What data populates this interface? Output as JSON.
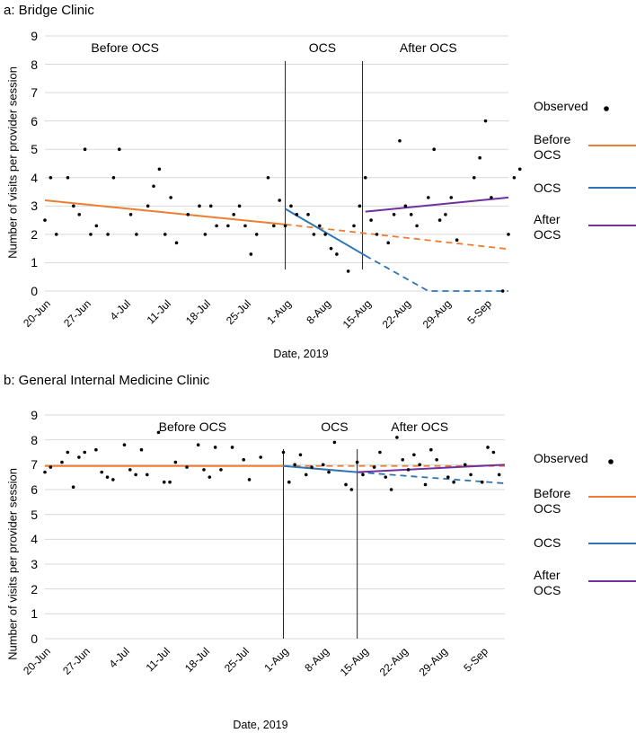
{
  "chart_data": [
    {
      "type": "scatter",
      "panel_title": "a: Bridge Clinic",
      "ylabel": "Number of visits per provider session",
      "xlabel": "Date, 2019",
      "ylim": [
        0,
        9
      ],
      "yticks": [
        "0",
        "1",
        "2",
        "3",
        "4",
        "5",
        "6",
        "7",
        "8",
        "9"
      ],
      "xticks": [
        "20-Jun",
        "27-Jun",
        "4-Jul",
        "11-Jul",
        "18-Jul",
        "25-Jul",
        "1-Aug",
        "8-Aug",
        "15-Aug",
        "22-Aug",
        "29-Aug",
        "5-Sep"
      ],
      "xlim_days": [
        0,
        81
      ],
      "phase_labels": [
        "Before OCS",
        "OCS",
        "After OCS"
      ],
      "phase_label_days": [
        14,
        48.5,
        67
      ],
      "phase_boundaries_days": [
        42,
        55.5
      ],
      "observed": [
        [
          0,
          2.5
        ],
        [
          1,
          4
        ],
        [
          2,
          2
        ],
        [
          4,
          4
        ],
        [
          5,
          3
        ],
        [
          6,
          2.7
        ],
        [
          7,
          5
        ],
        [
          8,
          2
        ],
        [
          9,
          2.3
        ],
        [
          11,
          2
        ],
        [
          12,
          4
        ],
        [
          13,
          5
        ],
        [
          15,
          2.7
        ],
        [
          16,
          2
        ],
        [
          18,
          3
        ],
        [
          19,
          3.7
        ],
        [
          20,
          4.3
        ],
        [
          21,
          2
        ],
        [
          22,
          3.3
        ],
        [
          23,
          1.7
        ],
        [
          25,
          2.7
        ],
        [
          27,
          3
        ],
        [
          28,
          2
        ],
        [
          29,
          3
        ],
        [
          30,
          2.3
        ],
        [
          32,
          2.3
        ],
        [
          33,
          2.7
        ],
        [
          34,
          3
        ],
        [
          35,
          2.3
        ],
        [
          36,
          1.3
        ],
        [
          37,
          2
        ],
        [
          39,
          4
        ],
        [
          40,
          2.3
        ],
        [
          41,
          3.2
        ],
        [
          42,
          2.3
        ],
        [
          43,
          3
        ],
        [
          44,
          2.7
        ],
        [
          46,
          2.7
        ],
        [
          47,
          2
        ],
        [
          48,
          2.3
        ],
        [
          49,
          2
        ],
        [
          50,
          1.5
        ],
        [
          51,
          1.3
        ],
        [
          53,
          0.7
        ],
        [
          54,
          2.3
        ],
        [
          55,
          3
        ],
        [
          56,
          4
        ],
        [
          57,
          2.5
        ],
        [
          58,
          2
        ],
        [
          60,
          1.7
        ],
        [
          61,
          2.7
        ],
        [
          62,
          5.3
        ],
        [
          63,
          3
        ],
        [
          64,
          2.7
        ],
        [
          65,
          2.3
        ],
        [
          67,
          3.3
        ],
        [
          68,
          5
        ],
        [
          69,
          2.5
        ],
        [
          70,
          2.7
        ],
        [
          71,
          3.3
        ],
        [
          72,
          1.8
        ],
        [
          75,
          4
        ],
        [
          76,
          4.7
        ],
        [
          77,
          6
        ],
        [
          78,
          3.3
        ],
        [
          80,
          0
        ],
        [
          81,
          2
        ],
        [
          82,
          4
        ],
        [
          83,
          4.3
        ]
      ],
      "series": [
        {
          "name": "Before OCS",
          "color": "#ED7D31",
          "solid": [
            [
              0,
              3.2
            ],
            [
              42,
              2.35
            ]
          ],
          "dashed": [
            [
              42,
              2.35
            ],
            [
              81,
              1.48
            ]
          ]
        },
        {
          "name": "OCS",
          "color": "#2E75B6",
          "solid": [
            [
              42,
              2.9
            ],
            [
              56,
              1.25
            ]
          ],
          "dashed": [
            [
              56,
              1.25
            ],
            [
              67,
              0
            ],
            [
              81,
              0
            ]
          ]
        },
        {
          "name": "After OCS",
          "color": "#7030A0",
          "solid": [
            [
              56,
              2.8
            ],
            [
              81,
              3.3
            ]
          ],
          "dashed": []
        }
      ],
      "legend": {
        "observed": "Observed",
        "items": [
          "Before OCS",
          "OCS",
          "After OCS"
        ]
      }
    },
    {
      "type": "scatter",
      "panel_title": "b: General Internal Medicine Clinic",
      "ylabel": "Number of visits per provider session",
      "xlabel": "Date, 2019",
      "ylim": [
        0,
        9
      ],
      "yticks": [
        "0",
        "1",
        "2",
        "3",
        "4",
        "5",
        "6",
        "7",
        "8",
        "9"
      ],
      "xticks": [
        "20-Jun",
        "27-Jun",
        "4-Jul",
        "11-Jul",
        "18-Jul",
        "25-Jul",
        "1-Aug",
        "8-Aug",
        "15-Aug",
        "22-Aug",
        "29-Aug",
        "5-Sep"
      ],
      "xlim_days": [
        0,
        81
      ],
      "phase_labels": [
        "Before OCS",
        "OCS",
        "After OCS"
      ],
      "phase_label_days": [
        26,
        51,
        66
      ],
      "phase_boundaries_days": [
        42,
        55
      ],
      "observed": [
        [
          0,
          6.7
        ],
        [
          1,
          6.9
        ],
        [
          3,
          7.1
        ],
        [
          4,
          7.5
        ],
        [
          5,
          6.1
        ],
        [
          6,
          7.3
        ],
        [
          7,
          7.5
        ],
        [
          9,
          7.6
        ],
        [
          10,
          6.7
        ],
        [
          11,
          6.5
        ],
        [
          12,
          6.4
        ],
        [
          14,
          7.8
        ],
        [
          15,
          6.8
        ],
        [
          16,
          6.6
        ],
        [
          17,
          7.6
        ],
        [
          18,
          6.6
        ],
        [
          20,
          8.3
        ],
        [
          21,
          6.3
        ],
        [
          22,
          6.3
        ],
        [
          23,
          7.1
        ],
        [
          25,
          6.9
        ],
        [
          27,
          7.8
        ],
        [
          28,
          6.8
        ],
        [
          29,
          6.5
        ],
        [
          30,
          7.7
        ],
        [
          31,
          6.8
        ],
        [
          33,
          7.7
        ],
        [
          35,
          7.2
        ],
        [
          36,
          6.4
        ],
        [
          38,
          7.3
        ],
        [
          42,
          7.5
        ],
        [
          43,
          6.3
        ],
        [
          44,
          7.0
        ],
        [
          45,
          7.4
        ],
        [
          46,
          6.6
        ],
        [
          47,
          6.9
        ],
        [
          49,
          7.0
        ],
        [
          50,
          6.7
        ],
        [
          51,
          7.9
        ],
        [
          53,
          6.2
        ],
        [
          54,
          6.0
        ],
        [
          55,
          7.1
        ],
        [
          56,
          6.6
        ],
        [
          58,
          6.9
        ],
        [
          59,
          7.5
        ],
        [
          60,
          6.5
        ],
        [
          61,
          6.0
        ],
        [
          62,
          8.1
        ],
        [
          63,
          7.2
        ],
        [
          64,
          6.8
        ],
        [
          65,
          7.4
        ],
        [
          66,
          7.0
        ],
        [
          67,
          6.2
        ],
        [
          68,
          7.6
        ],
        [
          69,
          7.2
        ],
        [
          71,
          6.5
        ],
        [
          72,
          6.3
        ],
        [
          74,
          7.0
        ],
        [
          75,
          6.6
        ],
        [
          77,
          6.3
        ],
        [
          78,
          7.7
        ],
        [
          79,
          7.5
        ],
        [
          80,
          6.6
        ]
      ],
      "series": [
        {
          "name": "Before OCS",
          "color": "#ED7D31",
          "solid": [
            [
              0,
              6.95
            ],
            [
              42,
              6.95
            ]
          ],
          "dashed": [
            [
              42,
              6.95
            ],
            [
              81,
              6.95
            ]
          ]
        },
        {
          "name": "OCS",
          "color": "#2E75B6",
          "solid": [
            [
              42,
              6.95
            ],
            [
              55,
              6.7
            ]
          ],
          "dashed": [
            [
              55,
              6.7
            ],
            [
              81,
              6.25
            ]
          ]
        },
        {
          "name": "After OCS",
          "color": "#7030A0",
          "solid": [
            [
              55,
              6.7
            ],
            [
              81,
              7.0
            ]
          ],
          "dashed": []
        }
      ],
      "legend": {
        "observed": "Observed",
        "items": [
          "Before OCS",
          "OCS",
          "After OCS"
        ]
      }
    }
  ]
}
